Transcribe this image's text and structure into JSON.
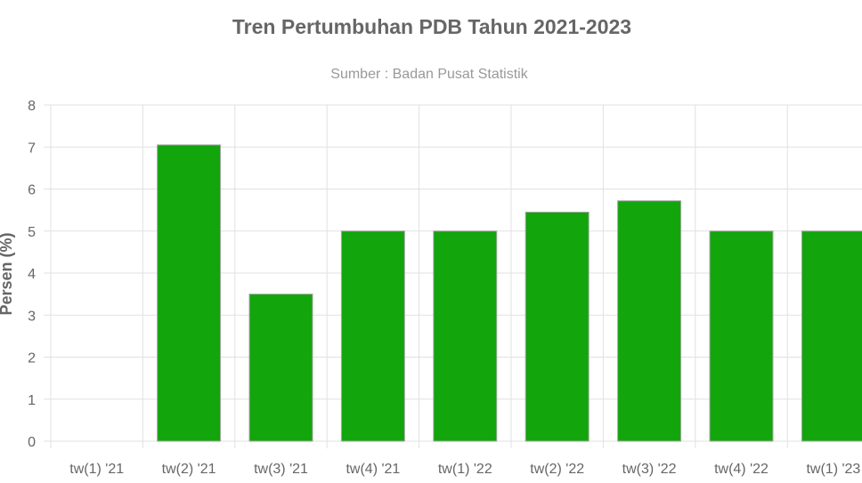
{
  "chart_data": {
    "type": "bar",
    "title": "Tren Pertumbuhan PDB Tahun 2021-2023",
    "subtitle": "Sumber : Badan Pusat Statistik",
    "xlabel": "",
    "ylabel": "Persen (%)",
    "ylim": [
      0,
      8
    ],
    "yticks": [
      "0",
      "1",
      "2",
      "3",
      "4",
      "5",
      "6",
      "7",
      "8"
    ],
    "categories": [
      "tw(1) '21",
      "tw(2) '21",
      "tw(3) '21",
      "tw(4) '21",
      "tw(1) '22",
      "tw(2) '22",
      "tw(3) '22",
      "tw(4) '22",
      "tw(1) '23"
    ],
    "values": [
      0,
      7.05,
      3.5,
      5.0,
      5.0,
      5.45,
      5.72,
      5.0,
      5.0
    ],
    "grid": true,
    "bar_color": "#12a50c",
    "bar_border_color": "#a9a9a9"
  }
}
